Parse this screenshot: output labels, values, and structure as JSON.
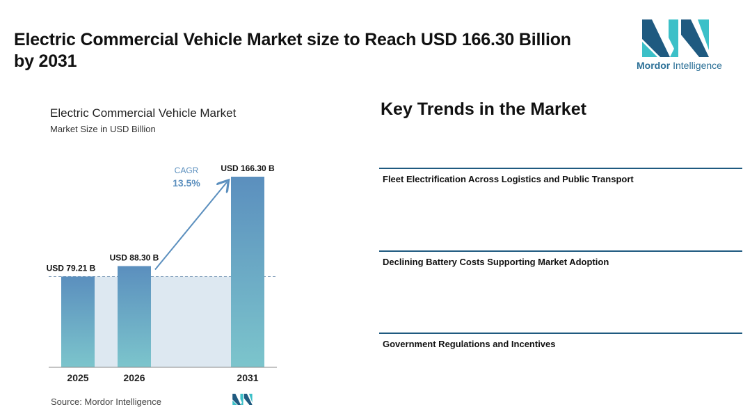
{
  "headline": "Electric Commercial Vehicle Market size to Reach USD 166.30 Billion by 2031",
  "logo": {
    "word1": "Mordor",
    "word2": " Intelligence"
  },
  "chart_data": {
    "type": "bar",
    "title": "Electric Commercial Vehicle Market",
    "subtitle": "Market Size in USD Billion",
    "categories": [
      "2025",
      "2026",
      "2031"
    ],
    "values": [
      79.21,
      88.3,
      166.3
    ],
    "value_labels": [
      "USD 79.21 B",
      "USD 88.30 B",
      "USD 166.30 B"
    ],
    "cagr_label": "CAGR",
    "cagr_value": "13.5%",
    "ylim": [
      0,
      166.3
    ],
    "bar_gradient": [
      "#5b8fbe",
      "#7cc5cc"
    ],
    "band_color": "#dde8f1",
    "arrow_color": "#5b8fbe"
  },
  "source_text": "Source:  Mordor Intelligence",
  "trends": {
    "title": "Key Trends in the Market",
    "items": [
      "Fleet Electrification Across Logistics and Public Transport",
      "Declining Battery Costs Supporting Market Adoption",
      "Government Regulations and Incentives"
    ]
  },
  "colors": {
    "logo_dark": "#1f5a80",
    "logo_teal": "#3cc0c8",
    "logo_text": "#2a6f96",
    "divider": "#1f5a80"
  }
}
